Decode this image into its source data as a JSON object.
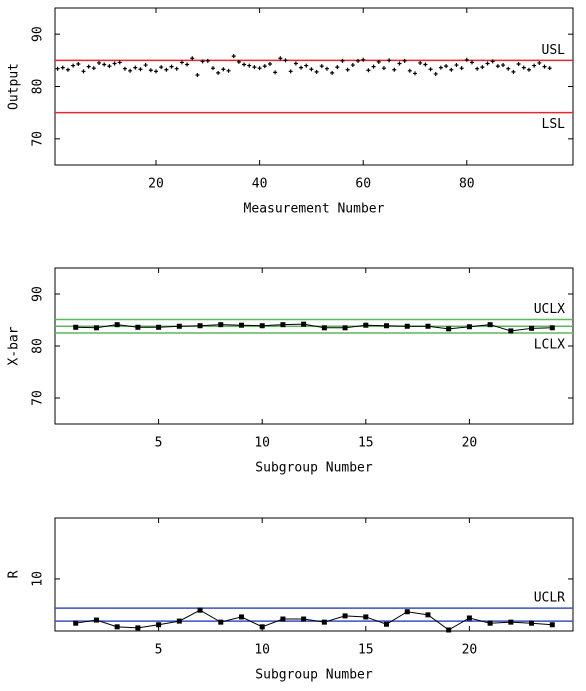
{
  "chart_data": [
    {
      "type": "scatter",
      "xlabel": "Measurement Number",
      "ylabel": "Output",
      "color": "#000000",
      "x": [
        1,
        2,
        3,
        4,
        5,
        6,
        7,
        8,
        9,
        10,
        11,
        12,
        13,
        14,
        15,
        16,
        17,
        18,
        19,
        20,
        21,
        22,
        23,
        24,
        25,
        26,
        27,
        28,
        29,
        30,
        31,
        32,
        33,
        34,
        35,
        36,
        37,
        38,
        39,
        40,
        41,
        42,
        43,
        44,
        45,
        46,
        47,
        48,
        49,
        50,
        51,
        52,
        53,
        54,
        55,
        56,
        57,
        58,
        59,
        60,
        61,
        62,
        63,
        64,
        65,
        66,
        67,
        68,
        69,
        70,
        71,
        72,
        73,
        74,
        75,
        76,
        77,
        78,
        79,
        80,
        81,
        82,
        83,
        84,
        85,
        86,
        87,
        88,
        89,
        90,
        91,
        92,
        93,
        94,
        95,
        96
      ],
      "values": [
        83.4,
        83.6,
        83.2,
        84.0,
        84.3,
        82.9,
        83.8,
        83.5,
        84.5,
        84.2,
        83.9,
        84.4,
        84.6,
        83.4,
        83.0,
        83.6,
        83.3,
        84.1,
        83.1,
        82.9,
        83.7,
        83.2,
        83.8,
        83.4,
        84.6,
        84.2,
        85.4,
        82.2,
        84.8,
        84.9,
        83.5,
        82.6,
        83.3,
        83.0,
        85.8,
        84.7,
        84.2,
        84.0,
        83.7,
        83.5,
        83.9,
        84.3,
        82.7,
        85.4,
        85.0,
        82.9,
        84.4,
        83.6,
        84.0,
        83.3,
        82.8,
        83.9,
        83.4,
        82.6,
        83.7,
        84.9,
        83.2,
        84.1,
        84.9,
        85.1,
        83.1,
        83.8,
        84.7,
        83.5,
        85.0,
        83.2,
        84.4,
        84.9,
        83.0,
        82.5,
        84.5,
        84.2,
        83.3,
        82.4,
        83.6,
        83.9,
        83.2,
        84.1,
        83.5,
        85.1,
        84.6,
        83.4,
        83.7,
        84.4,
        84.8,
        83.9,
        84.1,
        83.4,
        82.8,
        84.3,
        83.6,
        83.2,
        84.0,
        84.5,
        83.8,
        83.5
      ],
      "xlim": [
        0.5,
        100.5
      ],
      "ylim": [
        65,
        95
      ],
      "xticks": [
        20,
        40,
        60,
        80
      ],
      "yticks": [
        70,
        80,
        90
      ],
      "lines": [
        {
          "value": 85,
          "label": "USL",
          "color": "#e8252a"
        },
        {
          "value": 75,
          "label": "LSL",
          "color": "#e8252a"
        }
      ]
    },
    {
      "type": "line",
      "xlabel": "Subgroup Number",
      "ylabel": "X-bar",
      "color": "#000000",
      "x": [
        1,
        2,
        3,
        4,
        5,
        6,
        7,
        8,
        9,
        10,
        11,
        12,
        13,
        14,
        15,
        16,
        17,
        18,
        19,
        20,
        21,
        22,
        23,
        24
      ],
      "values": [
        83.6,
        83.5,
        84.1,
        83.6,
        83.6,
        83.8,
        83.9,
        84.1,
        84.0,
        83.9,
        84.1,
        84.2,
        83.5,
        83.5,
        84.0,
        83.9,
        83.8,
        83.8,
        83.3,
        83.7,
        84.1,
        82.9,
        83.4,
        83.5
      ],
      "xlim": [
        0,
        25
      ],
      "ylim": [
        65,
        95
      ],
      "xticks": [
        5,
        10,
        15,
        20
      ],
      "yticks": [
        70,
        80,
        90
      ],
      "lines": [
        {
          "value": 85.1,
          "label": "UCLX",
          "color": "#5cb85c"
        },
        {
          "value": 83.8,
          "color": "#5cb85c"
        },
        {
          "value": 82.5,
          "label": "LCLX",
          "color": "#5cb85c"
        }
      ]
    },
    {
      "type": "line",
      "xlabel": "Subgroup Number",
      "ylabel": "R",
      "color": "#000000",
      "x": [
        1,
        2,
        3,
        4,
        5,
        6,
        7,
        8,
        9,
        10,
        11,
        12,
        13,
        14,
        15,
        16,
        17,
        18,
        19,
        20,
        21,
        22,
        23,
        24
      ],
      "values": [
        1.5,
        2.1,
        0.8,
        0.6,
        1.2,
        1.9,
        4.0,
        1.7,
        2.7,
        0.8,
        2.3,
        2.3,
        1.7,
        2.9,
        2.7,
        1.3,
        3.7,
        3.1,
        0.2,
        2.5,
        1.5,
        1.7,
        1.5,
        1.2
      ],
      "xlim": [
        0,
        25
      ],
      "ylim": [
        0,
        21.7
      ],
      "xticks": [
        5,
        10,
        15,
        20
      ],
      "yticks": [
        10
      ],
      "lines": [
        {
          "value": 4.4,
          "label": "UCLR",
          "color": "#3b4fc4"
        },
        {
          "value": 1.9,
          "color": "#3b4fc4"
        }
      ]
    }
  ]
}
